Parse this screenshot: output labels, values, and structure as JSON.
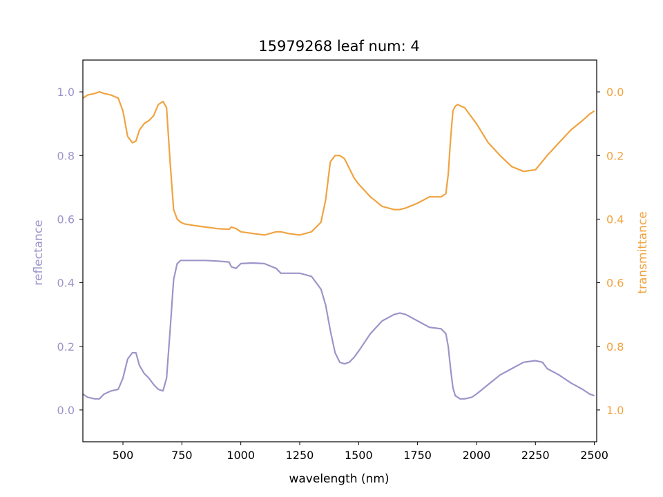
{
  "chart_data": {
    "type": "line",
    "title": "15979268 leaf num: 4",
    "xlabel": "wavelength (nm)",
    "ylabel_left": "reflectance",
    "ylabel_right": "transmittance",
    "xlim": [
      330,
      2510
    ],
    "ylim_left": [
      -0.1,
      1.1
    ],
    "ylim_right": [
      1.1,
      -0.1
    ],
    "right_axis_inverted": true,
    "grid": false,
    "colors": {
      "reflectance": "#9b95c9",
      "transmittance": "#f0a340",
      "frame": "#000000"
    },
    "x_ticks": [
      500,
      750,
      1000,
      1250,
      1500,
      1750,
      2000,
      2250,
      2500
    ],
    "x_tick_labels": [
      "500",
      "750",
      "1000",
      "1250",
      "1500",
      "1750",
      "2000",
      "2250",
      "2500"
    ],
    "y_ticks_left": [
      0.0,
      0.2,
      0.4,
      0.6,
      0.8,
      1.0
    ],
    "y_tick_labels_left": [
      "0.0",
      "0.2",
      "0.4",
      "0.6",
      "0.8",
      "1.0"
    ],
    "y_ticks_right": [
      0.0,
      0.2,
      0.4,
      0.6,
      0.8,
      1.0
    ],
    "y_tick_labels_right": [
      "0.0",
      "0.2",
      "0.4",
      "0.6",
      "0.8",
      "1.0"
    ],
    "series": [
      {
        "key": "reflectance",
        "axis": "left",
        "x": [
          330,
          350,
          380,
          400,
          420,
          450,
          480,
          500,
          520,
          540,
          555,
          570,
          590,
          610,
          630,
          650,
          670,
          685,
          700,
          715,
          730,
          745,
          760,
          800,
          850,
          900,
          950,
          960,
          980,
          1000,
          1050,
          1100,
          1150,
          1170,
          1200,
          1250,
          1300,
          1340,
          1360,
          1380,
          1400,
          1420,
          1440,
          1460,
          1480,
          1500,
          1550,
          1600,
          1650,
          1675,
          1700,
          1750,
          1800,
          1850,
          1870,
          1880,
          1890,
          1900,
          1910,
          1930,
          1950,
          1980,
          2000,
          2050,
          2100,
          2150,
          2200,
          2250,
          2280,
          2300,
          2350,
          2400,
          2450,
          2480,
          2500
        ],
        "y": [
          0.05,
          0.04,
          0.035,
          0.035,
          0.05,
          0.06,
          0.065,
          0.1,
          0.16,
          0.18,
          0.18,
          0.14,
          0.115,
          0.1,
          0.08,
          0.065,
          0.06,
          0.1,
          0.25,
          0.41,
          0.46,
          0.47,
          0.47,
          0.47,
          0.47,
          0.468,
          0.465,
          0.45,
          0.445,
          0.46,
          0.462,
          0.46,
          0.445,
          0.43,
          0.43,
          0.43,
          0.42,
          0.38,
          0.33,
          0.25,
          0.18,
          0.15,
          0.145,
          0.15,
          0.165,
          0.185,
          0.24,
          0.28,
          0.3,
          0.305,
          0.3,
          0.28,
          0.26,
          0.255,
          0.24,
          0.2,
          0.13,
          0.07,
          0.045,
          0.035,
          0.035,
          0.04,
          0.05,
          0.08,
          0.11,
          0.13,
          0.15,
          0.155,
          0.15,
          0.13,
          0.11,
          0.085,
          0.065,
          0.05,
          0.045
        ]
      },
      {
        "key": "transmittance",
        "axis": "right",
        "x": [
          330,
          350,
          380,
          400,
          420,
          450,
          480,
          500,
          520,
          540,
          555,
          570,
          590,
          610,
          630,
          650,
          670,
          685,
          700,
          715,
          730,
          745,
          760,
          800,
          850,
          900,
          950,
          960,
          980,
          1000,
          1050,
          1100,
          1150,
          1170,
          1200,
          1250,
          1300,
          1340,
          1360,
          1380,
          1400,
          1420,
          1440,
          1460,
          1480,
          1500,
          1550,
          1600,
          1650,
          1675,
          1700,
          1750,
          1800,
          1850,
          1870,
          1880,
          1890,
          1900,
          1910,
          1920,
          1950,
          1980,
          2000,
          2050,
          2100,
          2150,
          2200,
          2250,
          2300,
          2350,
          2400,
          2450,
          2480,
          2500
        ],
        "y": [
          0.02,
          0.01,
          0.005,
          0.0,
          0.005,
          0.01,
          0.02,
          0.06,
          0.14,
          0.16,
          0.155,
          0.12,
          0.1,
          0.09,
          0.075,
          0.04,
          0.03,
          0.05,
          0.22,
          0.37,
          0.4,
          0.41,
          0.415,
          0.42,
          0.425,
          0.43,
          0.432,
          0.425,
          0.43,
          0.44,
          0.445,
          0.45,
          0.44,
          0.44,
          0.445,
          0.45,
          0.44,
          0.41,
          0.34,
          0.22,
          0.2,
          0.2,
          0.21,
          0.24,
          0.27,
          0.29,
          0.33,
          0.36,
          0.37,
          0.37,
          0.365,
          0.35,
          0.33,
          0.33,
          0.32,
          0.26,
          0.15,
          0.06,
          0.045,
          0.04,
          0.05,
          0.08,
          0.1,
          0.16,
          0.2,
          0.235,
          0.25,
          0.245,
          0.2,
          0.16,
          0.12,
          0.09,
          0.07,
          0.06
        ]
      }
    ]
  }
}
